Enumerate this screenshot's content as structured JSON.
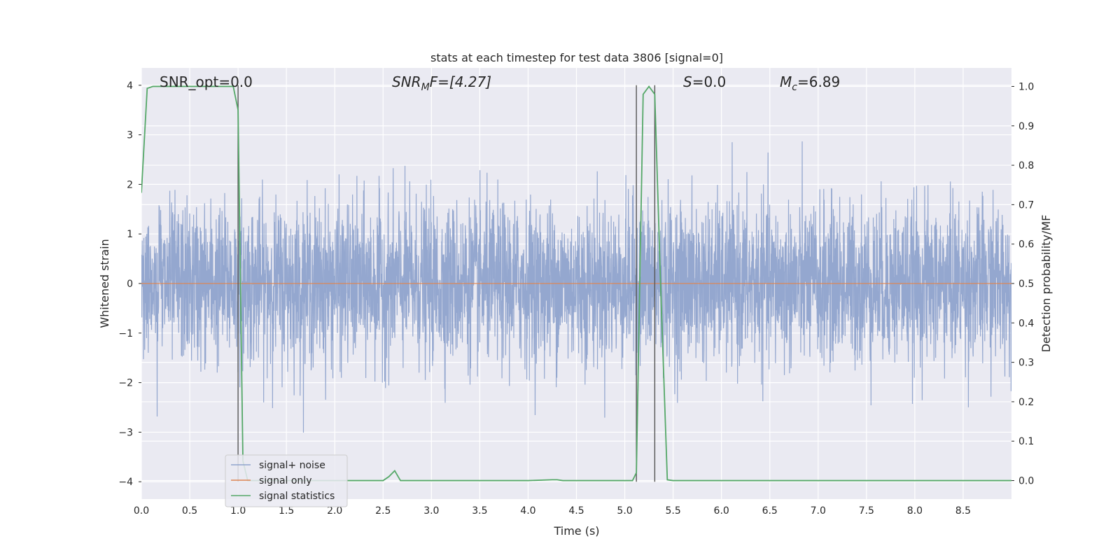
{
  "chart_data": {
    "type": "line",
    "title": "stats at each timestep for test data 3806 [signal=0]",
    "xlabel": "Time (s)",
    "ylabel_left": "Whitened strain",
    "ylabel_right": "Detection probability/MF",
    "xlim": [
      0.0,
      9.0
    ],
    "ylim_left": [
      -4.35,
      4.35
    ],
    "ylim_right": [
      -0.047,
      1.047
    ],
    "x_ticks": [
      "0.0",
      "0.5",
      "1.0",
      "1.5",
      "2.0",
      "2.5",
      "3.0",
      "3.5",
      "4.0",
      "4.5",
      "5.0",
      "5.5",
      "6.0",
      "6.5",
      "7.0",
      "7.5",
      "8.0",
      "8.5"
    ],
    "y_ticks_left": [
      "4",
      "3",
      "2",
      "1",
      "0",
      "−1",
      "−2",
      "−3",
      "−4"
    ],
    "y_ticks_right": [
      "1.0",
      "0.9",
      "0.8",
      "0.7",
      "0.6",
      "0.5",
      "0.4",
      "0.3",
      "0.2",
      "0.1",
      "0.0"
    ],
    "grid": true,
    "legend_position": "bottom-left",
    "annotations": {
      "snr_opt": "SNR_opt=0.0",
      "snr_mf_label": "SNR",
      "snr_mf_sub": "M",
      "snr_mf_value": "F=[4.27]",
      "s_label": "S",
      "s_value": "=0.0",
      "mc_label": "M",
      "mc_sub": "c",
      "mc_value": "=6.89"
    },
    "vlines_x": [
      1.0,
      5.12,
      5.31
    ],
    "series": [
      {
        "name": "signal+ noise",
        "color": "#8fa3cc",
        "kind": "noise",
        "std": 0.8,
        "duration": 9.0
      },
      {
        "name": "signal only",
        "color": "#dd8452",
        "values_const": 0.0
      },
      {
        "name": "signal statistics",
        "color": "#55a868",
        "x": [
          0.0,
          0.06,
          0.12,
          0.2,
          0.5,
          0.7,
          0.9,
          0.95,
          1.0,
          1.05,
          1.1,
          1.5,
          2.0,
          2.5,
          2.56,
          2.62,
          2.68,
          3.0,
          4.0,
          4.25,
          4.3,
          4.36,
          5.0,
          5.08,
          5.12,
          5.19,
          5.25,
          5.31,
          5.37,
          5.44,
          5.5,
          6.0,
          9.0
        ],
        "values": [
          0.73,
          0.995,
          1.0,
          1.0,
          1.0,
          1.0,
          1.0,
          1.0,
          0.94,
          0.05,
          0.0,
          0.0,
          0.0,
          0.0,
          0.01,
          0.025,
          0.0,
          0.0,
          0.0,
          0.002,
          0.002,
          0.0,
          0.0,
          0.0,
          0.02,
          0.98,
          1.0,
          0.98,
          0.5,
          0.002,
          0.0,
          0.0,
          0.0
        ]
      }
    ]
  }
}
